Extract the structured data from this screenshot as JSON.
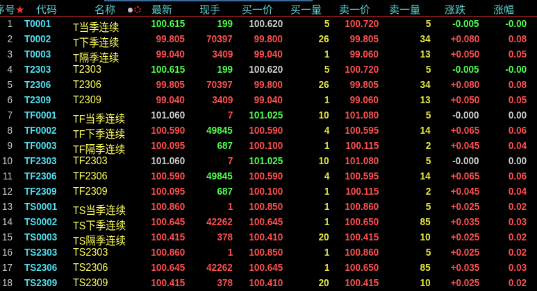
{
  "header": {
    "index": "序号",
    "code": "代码",
    "name": "名称",
    "last": "最新",
    "volume": "现手",
    "bid": "买一价",
    "bid_qty": "买一量",
    "ask": "卖一价",
    "ask_qty": "卖一量",
    "change": "涨跌",
    "change_pct": "涨幅"
  },
  "colors": {
    "up": "#ff5050",
    "down": "#50ff50",
    "flat": "#d0d0d0",
    "code": "#50e0f0",
    "name": "#ffff60",
    "qty": "#e8e840",
    "header": "#5cd0d0"
  },
  "rows": [
    {
      "i": "1",
      "code": "T0001",
      "name": "T当季连续",
      "last": "100.615",
      "vol": "199",
      "bid": "100.620",
      "bq": "5",
      "ask": "100.720",
      "aq": "5",
      "chg": "-0.005",
      "pct": "-0.00",
      "cl": "down",
      "cv": "down",
      "cb": "flat",
      "ca": "up",
      "cc": "down"
    },
    {
      "i": "2",
      "code": "T0002",
      "name": "T下季连续",
      "last": "99.805",
      "vol": "70397",
      "bid": "99.800",
      "bq": "26",
      "ask": "99.805",
      "aq": "34",
      "chg": "+0.080",
      "pct": "0.08",
      "cl": "up",
      "cv": "up",
      "cb": "up",
      "ca": "up",
      "cc": "up"
    },
    {
      "i": "3",
      "code": "T0003",
      "name": "T隔季连续",
      "last": "99.040",
      "vol": "3409",
      "bid": "99.040",
      "bq": "1",
      "ask": "99.060",
      "aq": "13",
      "chg": "+0.050",
      "pct": "0.05",
      "cl": "up",
      "cv": "up",
      "cb": "up",
      "ca": "up",
      "cc": "up"
    },
    {
      "i": "4",
      "code": "T2303",
      "name": "T2303",
      "last": "100.615",
      "vol": "199",
      "bid": "100.620",
      "bq": "5",
      "ask": "100.720",
      "aq": "5",
      "chg": "-0.005",
      "pct": "-0.00",
      "cl": "down",
      "cv": "down",
      "cb": "flat",
      "ca": "up",
      "cc": "down"
    },
    {
      "i": "5",
      "code": "T2306",
      "name": "T2306",
      "last": "99.805",
      "vol": "70397",
      "bid": "99.800",
      "bq": "26",
      "ask": "99.805",
      "aq": "34",
      "chg": "+0.080",
      "pct": "0.08",
      "cl": "up",
      "cv": "up",
      "cb": "up",
      "ca": "up",
      "cc": "up"
    },
    {
      "i": "6",
      "code": "T2309",
      "name": "T2309",
      "last": "99.040",
      "vol": "3409",
      "bid": "99.040",
      "bq": "1",
      "ask": "99.060",
      "aq": "13",
      "chg": "+0.050",
      "pct": "0.05",
      "cl": "up",
      "cv": "up",
      "cb": "up",
      "ca": "up",
      "cc": "up"
    },
    {
      "i": "7",
      "code": "TF0001",
      "name": "TF当季连续",
      "last": "101.060",
      "vol": "7",
      "bid": "101.025",
      "bq": "10",
      "ask": "101.080",
      "aq": "5",
      "chg": "-0.000",
      "pct": "0.00",
      "cl": "flat",
      "cv": "up",
      "cb": "down",
      "ca": "up",
      "cc": "flat"
    },
    {
      "i": "8",
      "code": "TF0002",
      "name": "TF下季连续",
      "last": "100.590",
      "vol": "49845",
      "bid": "100.590",
      "bq": "4",
      "ask": "100.595",
      "aq": "14",
      "chg": "+0.065",
      "pct": "0.06",
      "cl": "up",
      "cv": "down",
      "cb": "up",
      "ca": "up",
      "cc": "up"
    },
    {
      "i": "9",
      "code": "TF0003",
      "name": "TF隔季连续",
      "last": "100.095",
      "vol": "687",
      "bid": "100.100",
      "bq": "1",
      "ask": "100.115",
      "aq": "2",
      "chg": "+0.045",
      "pct": "0.04",
      "cl": "up",
      "cv": "down",
      "cb": "up",
      "ca": "up",
      "cc": "up"
    },
    {
      "i": "10",
      "code": "TF2303",
      "name": "TF2303",
      "last": "101.060",
      "vol": "7",
      "bid": "101.025",
      "bq": "10",
      "ask": "101.080",
      "aq": "5",
      "chg": "-0.000",
      "pct": "0.00",
      "cl": "flat",
      "cv": "up",
      "cb": "down",
      "ca": "up",
      "cc": "flat"
    },
    {
      "i": "11",
      "code": "TF2306",
      "name": "TF2306",
      "last": "100.590",
      "vol": "49845",
      "bid": "100.590",
      "bq": "4",
      "ask": "100.595",
      "aq": "14",
      "chg": "+0.065",
      "pct": "0.06",
      "cl": "up",
      "cv": "down",
      "cb": "up",
      "ca": "up",
      "cc": "up"
    },
    {
      "i": "12",
      "code": "TF2309",
      "name": "TF2309",
      "last": "100.095",
      "vol": "687",
      "bid": "100.100",
      "bq": "1",
      "ask": "100.115",
      "aq": "2",
      "chg": "+0.045",
      "pct": "0.04",
      "cl": "up",
      "cv": "down",
      "cb": "up",
      "ca": "up",
      "cc": "up"
    },
    {
      "i": "13",
      "code": "TS0001",
      "name": "TS当季连续",
      "last": "100.860",
      "vol": "1",
      "bid": "100.850",
      "bq": "1",
      "ask": "100.860",
      "aq": "5",
      "chg": "+0.025",
      "pct": "0.02",
      "cl": "up",
      "cv": "up",
      "cb": "up",
      "ca": "up",
      "cc": "up"
    },
    {
      "i": "14",
      "code": "TS0002",
      "name": "TS下季连续",
      "last": "100.645",
      "vol": "42262",
      "bid": "100.645",
      "bq": "1",
      "ask": "100.650",
      "aq": "85",
      "chg": "+0.035",
      "pct": "0.03",
      "cl": "up",
      "cv": "up",
      "cb": "up",
      "ca": "up",
      "cc": "up"
    },
    {
      "i": "15",
      "code": "TS0003",
      "name": "TS隔季连续",
      "last": "100.415",
      "vol": "378",
      "bid": "100.410",
      "bq": "20",
      "ask": "100.415",
      "aq": "10",
      "chg": "+0.025",
      "pct": "0.02",
      "cl": "up",
      "cv": "up",
      "cb": "up",
      "ca": "up",
      "cc": "up"
    },
    {
      "i": "16",
      "code": "TS2303",
      "name": "TS2303",
      "last": "100.860",
      "vol": "1",
      "bid": "100.850",
      "bq": "1",
      "ask": "100.860",
      "aq": "5",
      "chg": "+0.025",
      "pct": "0.02",
      "cl": "up",
      "cv": "up",
      "cb": "up",
      "ca": "up",
      "cc": "up"
    },
    {
      "i": "17",
      "code": "TS2306",
      "name": "TS2306",
      "last": "100.645",
      "vol": "42262",
      "bid": "100.645",
      "bq": "1",
      "ask": "100.650",
      "aq": "85",
      "chg": "+0.035",
      "pct": "0.03",
      "cl": "up",
      "cv": "up",
      "cb": "up",
      "ca": "up",
      "cc": "up"
    },
    {
      "i": "18",
      "code": "TS2309",
      "name": "TS2309",
      "last": "100.415",
      "vol": "378",
      "bid": "100.410",
      "bq": "20",
      "ask": "100.415",
      "aq": "10",
      "chg": "+0.025",
      "pct": "0.02",
      "cl": "up",
      "cv": "up",
      "cb": "up",
      "ca": "up",
      "cc": "up"
    }
  ]
}
